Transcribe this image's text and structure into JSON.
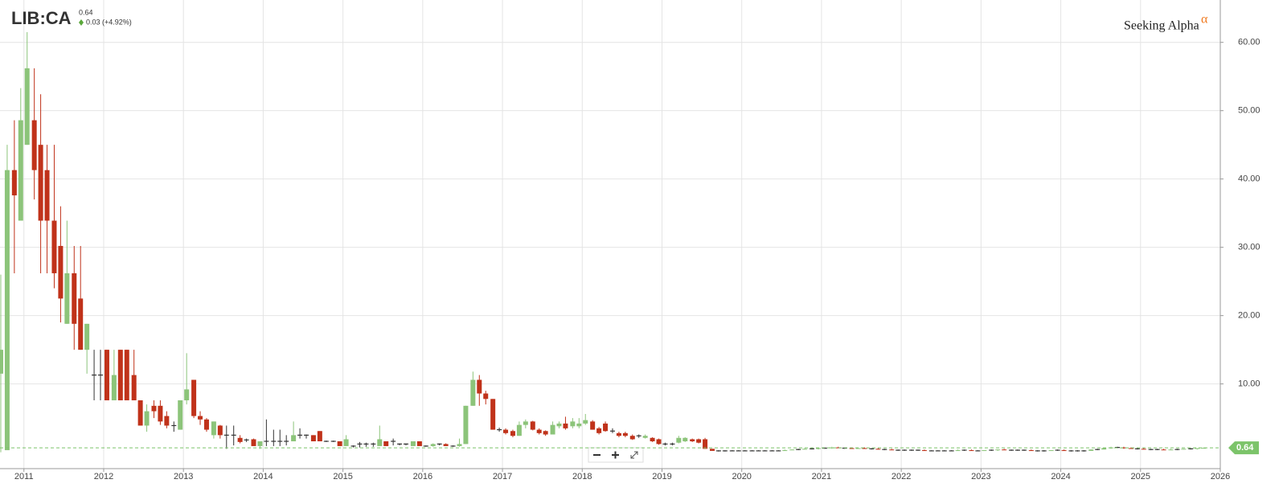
{
  "chart_data": {
    "type": "candlestick",
    "symbol": "LIB:CA",
    "last_price": 0.64,
    "change": "0.03 (+4.92%)",
    "brand": "Seeking Alpha",
    "brand_mark": "α",
    "up_color": "#8cc47a",
    "down_color": "#c0321a",
    "flat_color": "#333333",
    "xlim": [
      2010.7,
      2026
    ],
    "xticks": [
      2011,
      2012,
      2013,
      2014,
      2015,
      2016,
      2017,
      2018,
      2019,
      2020,
      2021,
      2022,
      2023,
      2024,
      2025,
      2026
    ],
    "ylim": [
      -2.4,
      66.2
    ],
    "yticks": [
      {
        "value": 10,
        "label": "10.00"
      },
      {
        "value": 20,
        "label": "20.00"
      },
      {
        "value": 30,
        "label": "30.00"
      },
      {
        "value": 40,
        "label": "40.00"
      },
      {
        "value": 50,
        "label": "50.00"
      },
      {
        "value": 60,
        "label": "60.00"
      }
    ],
    "grid": true,
    "x": [
      2010.71,
      2010.79,
      2010.88,
      2010.96,
      2011.04,
      2011.13,
      2011.21,
      2011.29,
      2011.38,
      2011.46,
      2011.54,
      2011.63,
      2011.71,
      2011.79,
      2011.88,
      2011.96,
      2012.04,
      2012.13,
      2012.21,
      2012.29,
      2012.38,
      2012.46,
      2012.54,
      2012.63,
      2012.71,
      2012.79,
      2012.88,
      2012.96,
      2013.04,
      2013.13,
      2013.21,
      2013.29,
      2013.38,
      2013.46,
      2013.54,
      2013.63,
      2013.71,
      2013.79,
      2013.88,
      2013.96,
      2014.04,
      2014.13,
      2014.21,
      2014.29,
      2014.38,
      2014.46,
      2014.54,
      2014.63,
      2014.71,
      2014.79,
      2014.88,
      2014.96,
      2015.04,
      2015.13,
      2015.21,
      2015.29,
      2015.38,
      2015.46,
      2015.54,
      2015.63,
      2015.71,
      2015.79,
      2015.88,
      2015.96,
      2016.04,
      2016.13,
      2016.21,
      2016.29,
      2016.38,
      2016.46,
      2016.54,
      2016.63,
      2016.71,
      2016.79,
      2016.88,
      2016.96,
      2017.04,
      2017.13,
      2017.21,
      2017.29,
      2017.38,
      2017.46,
      2017.54,
      2017.63,
      2017.71,
      2017.79,
      2017.88,
      2017.96,
      2018.04,
      2018.13,
      2018.21,
      2018.29,
      2018.38,
      2018.46,
      2018.54,
      2018.63,
      2018.71,
      2018.79,
      2018.88,
      2018.96,
      2019.04,
      2019.13,
      2019.21,
      2019.29,
      2019.38,
      2019.46,
      2019.54,
      2019.63,
      2019.71,
      2019.79,
      2019.88,
      2019.96,
      2020.04,
      2020.13,
      2020.21,
      2020.29,
      2020.38,
      2020.46,
      2020.54,
      2020.63,
      2020.71,
      2020.79,
      2020.88,
      2020.96,
      2021.04,
      2021.13,
      2021.21,
      2021.29,
      2021.38,
      2021.46,
      2021.54,
      2021.63,
      2021.71,
      2021.79,
      2021.88,
      2021.96,
      2022.04,
      2022.13,
      2022.21,
      2022.29,
      2022.38,
      2022.46,
      2022.54,
      2022.63,
      2022.71,
      2022.79,
      2022.88,
      2022.96,
      2023.04,
      2023.13,
      2023.21,
      2023.29,
      2023.38,
      2023.46,
      2023.54,
      2023.63,
      2023.71,
      2023.79,
      2023.88,
      2023.96,
      2024.04,
      2024.13,
      2024.21,
      2024.29,
      2024.38,
      2024.46,
      2024.54,
      2024.63,
      2024.71,
      2024.79,
      2024.88,
      2024.96,
      2025.04,
      2025.13,
      2025.21,
      2025.29,
      2025.38,
      2025.46,
      2025.54,
      2025.63,
      2025.71,
      2025.79
    ],
    "candles": [
      [
        11.5,
        26,
        0,
        15
      ],
      [
        0.3,
        45,
        0.3,
        41.3
      ],
      [
        41.3,
        48.6,
        26.2,
        37.6
      ],
      [
        33.9,
        53.3,
        33.9,
        48.6
      ],
      [
        45,
        61.5,
        45,
        56.2
      ],
      [
        48.6,
        56.2,
        37,
        41.3
      ],
      [
        45,
        52.4,
        26.2,
        33.9
      ],
      [
        41.3,
        45,
        26.2,
        33.9
      ],
      [
        33.9,
        45,
        24,
        26.2
      ],
      [
        30.2,
        36,
        19,
        22.5
      ],
      [
        18.8,
        33.9,
        18.8,
        26.2
      ],
      [
        26.2,
        30.2,
        15,
        18.8
      ],
      [
        22.5,
        30.2,
        15,
        15
      ],
      [
        15,
        18.8,
        11.5,
        18.8
      ],
      [
        11.3,
        15,
        7.6,
        11.3
      ],
      [
        11.3,
        15,
        7.6,
        11.3
      ],
      [
        15,
        15,
        7.6,
        7.6
      ],
      [
        7.6,
        15,
        7.6,
        11.3
      ],
      [
        15,
        15,
        7.6,
        7.6
      ],
      [
        15,
        15,
        7.6,
        7.6
      ],
      [
        11.3,
        15,
        7.6,
        7.6
      ],
      [
        7.6,
        7.6,
        3.9,
        3.9
      ],
      [
        3.9,
        7,
        3,
        6
      ],
      [
        6.8,
        7.6,
        5,
        6
      ],
      [
        6.8,
        7.6,
        4,
        4.5
      ],
      [
        5.3,
        6,
        3.5,
        3.9
      ],
      [
        3.9,
        4.5,
        3,
        3.9
      ],
      [
        3.3,
        7.6,
        3.3,
        7.6
      ],
      [
        7.6,
        14.5,
        7,
        9.2
      ],
      [
        10.6,
        10.6,
        5,
        5.3
      ],
      [
        5.3,
        6,
        4,
        4.8
      ],
      [
        4.8,
        5,
        3,
        3.3
      ],
      [
        2.5,
        4.5,
        2,
        4.5
      ],
      [
        3.9,
        4,
        2,
        2.5
      ],
      [
        2.5,
        3.9,
        0.5,
        2.5
      ],
      [
        2.5,
        3.9,
        1,
        2.5
      ],
      [
        2.1,
        2.5,
        1.3,
        1.5
      ],
      [
        1.8,
        2,
        1.5,
        1.8
      ],
      [
        1.9,
        2,
        0.9,
        0.9
      ],
      [
        0.9,
        1.6,
        0.5,
        1.6
      ],
      [
        1.6,
        4.8,
        0.9,
        1.6
      ],
      [
        1.6,
        3.3,
        0.9,
        1.6
      ],
      [
        1.6,
        3.3,
        0.9,
        1.6
      ],
      [
        1.6,
        2.5,
        1,
        1.6
      ],
      [
        1.6,
        4.5,
        1.6,
        2.5
      ],
      [
        2.5,
        3.5,
        2,
        2.5
      ],
      [
        2.5,
        2.6,
        2,
        2.5
      ],
      [
        2.5,
        2.5,
        1.6,
        1.6
      ],
      [
        3.1,
        3.1,
        1.6,
        1.6
      ],
      [
        1.6,
        1.7,
        1.5,
        1.6
      ],
      [
        1.6,
        1.7,
        1.5,
        1.6
      ],
      [
        1.6,
        1.6,
        0.9,
        0.9
      ],
      [
        0.9,
        2.5,
        0.9,
        1.9
      ],
      [
        0.9,
        1,
        0.7,
        0.9
      ],
      [
        1.2,
        1.5,
        0.7,
        1.2
      ],
      [
        1.2,
        1.4,
        0.8,
        1.2
      ],
      [
        1.2,
        1.4,
        0.8,
        1.2
      ],
      [
        0.9,
        3.9,
        0.9,
        1.9
      ],
      [
        1.6,
        1.6,
        0.9,
        0.9
      ],
      [
        1.6,
        2,
        1,
        1.6
      ],
      [
        1.2,
        1.3,
        1,
        1.2
      ],
      [
        1.2,
        1.3,
        1,
        1.2
      ],
      [
        0.9,
        1.6,
        0.9,
        1.6
      ],
      [
        1.6,
        1.6,
        0.9,
        0.9
      ],
      [
        0.9,
        1,
        0.8,
        0.9
      ],
      [
        0.9,
        1.3,
        0.8,
        1.2
      ],
      [
        1.2,
        1.3,
        1,
        1.2
      ],
      [
        1.2,
        1.3,
        0.9,
        0.9
      ],
      [
        0.9,
        1,
        0.8,
        0.9
      ],
      [
        0.9,
        2,
        0.8,
        1.2
      ],
      [
        1.2,
        6.8,
        1.2,
        6.8
      ],
      [
        6.8,
        11.8,
        6.8,
        10.6
      ],
      [
        10.6,
        11.3,
        6.8,
        8.6
      ],
      [
        8.6,
        9,
        7,
        7.8
      ],
      [
        7.8,
        7.8,
        3.3,
        3.3
      ],
      [
        3.3,
        3.6,
        3,
        3.3
      ],
      [
        3.3,
        3.5,
        2.6,
        2.8
      ],
      [
        3.1,
        3.3,
        2.2,
        2.4
      ],
      [
        2.4,
        4.5,
        2.4,
        4
      ],
      [
        4,
        4.8,
        3.5,
        4.5
      ],
      [
        4.5,
        4.6,
        3.2,
        3.3
      ],
      [
        3.3,
        3.5,
        2.6,
        2.8
      ],
      [
        3.1,
        3.2,
        2.4,
        2.6
      ],
      [
        2.6,
        4.5,
        2.6,
        4
      ],
      [
        3.8,
        4.5,
        3.5,
        4.2
      ],
      [
        4.2,
        5.2,
        3.3,
        3.5
      ],
      [
        3.8,
        5,
        3.5,
        4.5
      ],
      [
        3.8,
        5,
        3.5,
        4.2
      ],
      [
        4.2,
        5.6,
        4,
        4.7
      ],
      [
        4.5,
        4.7,
        3.3,
        3.3
      ],
      [
        3.5,
        3.7,
        2.6,
        2.8
      ],
      [
        4.2,
        4.5,
        3,
        3.1
      ],
      [
        3.1,
        3.5,
        2.8,
        3.1
      ],
      [
        2.8,
        3,
        2.2,
        2.4
      ],
      [
        2.8,
        3,
        2.2,
        2.4
      ],
      [
        2.4,
        2.6,
        1.8,
        1.9
      ],
      [
        2.4,
        2.6,
        2.1,
        2.4
      ],
      [
        2.1,
        2.6,
        2,
        2.4
      ],
      [
        2.1,
        2.2,
        1.5,
        1.6
      ],
      [
        1.9,
        2,
        1.1,
        1.2
      ],
      [
        1.2,
        1.4,
        1,
        1.2
      ],
      [
        1.2,
        1.4,
        1,
        1.2
      ],
      [
        1.4,
        2.4,
        1.3,
        2.1
      ],
      [
        1.6,
        2.2,
        1.5,
        2.1
      ],
      [
        1.9,
        2,
        1.5,
        1.6
      ],
      [
        1.9,
        2,
        1.3,
        1.4
      ],
      [
        1.9,
        2.1,
        0.5,
        0.5
      ],
      [
        0.5,
        0.5,
        0.2,
        0.2
      ],
      [
        0.2,
        0.3,
        0.1,
        0.2
      ],
      [
        0.2,
        0.3,
        0.1,
        0.2
      ],
      [
        0.2,
        0.3,
        0.2,
        0.2
      ],
      [
        0.2,
        0.3,
        0.2,
        0.2
      ],
      [
        0.2,
        0.3,
        0.2,
        0.2
      ],
      [
        0.2,
        0.3,
        0.2,
        0.2
      ],
      [
        0.2,
        0.3,
        0.2,
        0.2
      ],
      [
        0.2,
        0.3,
        0.2,
        0.2
      ],
      [
        0.2,
        0.3,
        0.2,
        0.2
      ],
      [
        0.2,
        0.3,
        0.2,
        0.2
      ],
      [
        0.2,
        0.4,
        0.2,
        0.3
      ],
      [
        0.3,
        0.4,
        0.3,
        0.4
      ],
      [
        0.4,
        0.5,
        0.3,
        0.4
      ],
      [
        0.4,
        0.6,
        0.4,
        0.5
      ],
      [
        0.5,
        0.6,
        0.4,
        0.5
      ],
      [
        0.5,
        0.6,
        0.4,
        0.6
      ],
      [
        0.6,
        0.7,
        0.5,
        0.6
      ],
      [
        0.6,
        0.8,
        0.5,
        0.7
      ],
      [
        0.7,
        0.8,
        0.6,
        0.6
      ],
      [
        0.6,
        0.7,
        0.5,
        0.6
      ],
      [
        0.6,
        0.7,
        0.5,
        0.5
      ],
      [
        0.5,
        0.7,
        0.5,
        0.6
      ],
      [
        0.6,
        0.7,
        0.5,
        0.5
      ],
      [
        0.5,
        0.6,
        0.4,
        0.5
      ],
      [
        0.5,
        0.6,
        0.4,
        0.4
      ],
      [
        0.4,
        0.5,
        0.3,
        0.4
      ],
      [
        0.4,
        0.5,
        0.3,
        0.3
      ],
      [
        0.3,
        0.4,
        0.2,
        0.3
      ],
      [
        0.3,
        0.4,
        0.2,
        0.3
      ],
      [
        0.3,
        0.4,
        0.2,
        0.3
      ],
      [
        0.3,
        0.4,
        0.2,
        0.3
      ],
      [
        0.3,
        0.4,
        0.2,
        0.2
      ],
      [
        0.2,
        0.3,
        0.2,
        0.2
      ],
      [
        0.2,
        0.3,
        0.2,
        0.2
      ],
      [
        0.2,
        0.3,
        0.2,
        0.2
      ],
      [
        0.2,
        0.3,
        0.2,
        0.2
      ],
      [
        0.2,
        0.4,
        0.2,
        0.3
      ],
      [
        0.3,
        0.4,
        0.2,
        0.3
      ],
      [
        0.3,
        0.4,
        0.2,
        0.2
      ],
      [
        0.2,
        0.3,
        0.2,
        0.2
      ],
      [
        0.2,
        0.3,
        0.2,
        0.3
      ],
      [
        0.3,
        0.4,
        0.2,
        0.3
      ],
      [
        0.3,
        0.4,
        0.2,
        0.4
      ],
      [
        0.4,
        0.5,
        0.3,
        0.3
      ],
      [
        0.3,
        0.4,
        0.2,
        0.3
      ],
      [
        0.3,
        0.4,
        0.2,
        0.3
      ],
      [
        0.3,
        0.4,
        0.2,
        0.3
      ],
      [
        0.3,
        0.4,
        0.2,
        0.2
      ],
      [
        0.2,
        0.3,
        0.1,
        0.2
      ],
      [
        0.2,
        0.3,
        0.1,
        0.2
      ],
      [
        0.2,
        0.3,
        0.2,
        0.3
      ],
      [
        0.3,
        0.4,
        0.2,
        0.3
      ],
      [
        0.3,
        0.4,
        0.2,
        0.2
      ],
      [
        0.2,
        0.3,
        0.1,
        0.2
      ],
      [
        0.2,
        0.3,
        0.1,
        0.2
      ],
      [
        0.2,
        0.3,
        0.1,
        0.2
      ],
      [
        0.2,
        0.4,
        0.2,
        0.4
      ],
      [
        0.4,
        0.5,
        0.3,
        0.4
      ],
      [
        0.4,
        0.6,
        0.4,
        0.6
      ],
      [
        0.6,
        0.8,
        0.5,
        0.7
      ],
      [
        0.7,
        0.8,
        0.6,
        0.7
      ],
      [
        0.7,
        0.8,
        0.5,
        0.6
      ],
      [
        0.6,
        0.7,
        0.5,
        0.5
      ],
      [
        0.5,
        0.6,
        0.4,
        0.5
      ],
      [
        0.5,
        0.6,
        0.4,
        0.4
      ],
      [
        0.4,
        0.5,
        0.3,
        0.4
      ],
      [
        0.4,
        0.5,
        0.3,
        0.4
      ],
      [
        0.4,
        0.5,
        0.3,
        0.3
      ],
      [
        0.3,
        0.5,
        0.3,
        0.4
      ],
      [
        0.4,
        0.5,
        0.3,
        0.4
      ],
      [
        0.4,
        0.5,
        0.4,
        0.5
      ],
      [
        0.5,
        0.6,
        0.4,
        0.5
      ],
      [
        0.5,
        0.6,
        0.4,
        0.6
      ],
      [
        0.61,
        0.7,
        0.55,
        0.64
      ]
    ]
  }
}
